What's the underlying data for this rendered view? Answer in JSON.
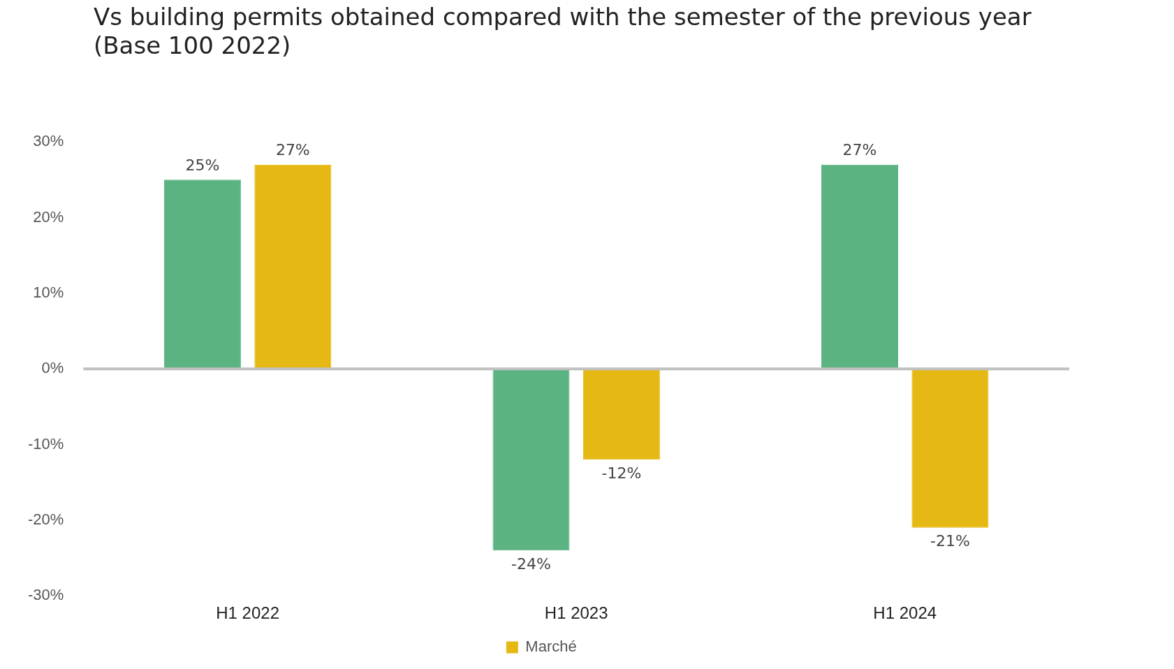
{
  "chart_data": {
    "type": "bar",
    "title": "Vs building permits obtained compared with the semester of the previous year\n(Base 100 2022)",
    "categories": [
      "H1 2022",
      "H1 2023",
      "H1 2024"
    ],
    "series": [
      {
        "color": "#5bb381",
        "values": [
          25,
          -24,
          27
        ],
        "value_labels": [
          "25%",
          "-24%",
          "27%"
        ]
      },
      {
        "name": "Marché",
        "color": "#e6b813",
        "values": [
          27,
          -12,
          -21
        ],
        "value_labels": [
          "27%",
          "-12%",
          "-21%"
        ]
      }
    ],
    "ylim": [
      -30,
      30
    ],
    "yticks": [
      {
        "value": -30,
        "label": "-30%"
      },
      {
        "value": -20,
        "label": "-20%"
      },
      {
        "value": -10,
        "label": "-10%"
      },
      {
        "value": 0,
        "label": "0%"
      },
      {
        "value": 10,
        "label": "10%"
      },
      {
        "value": 20,
        "label": "20%"
      },
      {
        "value": 30,
        "label": "30%"
      }
    ],
    "ref_lines": [
      {
        "axis": "y",
        "value": 0,
        "color": "#c0c0c0"
      }
    ],
    "grid": false,
    "legend": "bottom"
  }
}
